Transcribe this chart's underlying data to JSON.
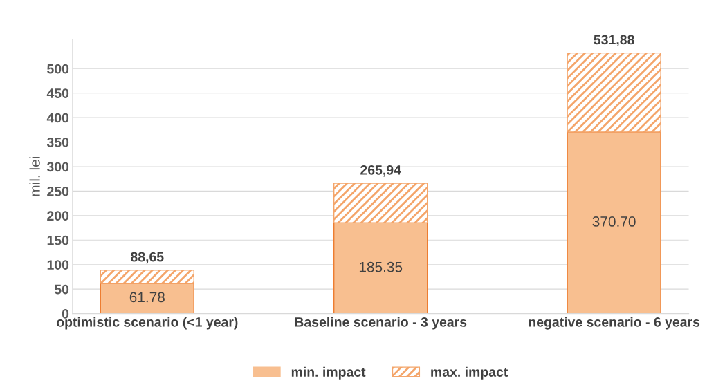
{
  "chart_data": {
    "type": "bar",
    "stacked": true,
    "ylabel": "mil. lei",
    "categories": [
      "optimistic scenario (<1 year)",
      "Baseline scenario - 3 years",
      "negative scenario - 6 years"
    ],
    "series": [
      {
        "name": "min. impact",
        "color": "#f8bf90",
        "values": [
          61.78,
          185.35,
          370.7
        ],
        "value_labels": [
          "61.78",
          "185.35",
          "370.70"
        ]
      },
      {
        "name": "max. impact",
        "color": "#f4a56a",
        "values": [
          26.87,
          80.59,
          161.18
        ]
      }
    ],
    "totals": [
      "88,65",
      "265,94",
      "531,88"
    ],
    "ylim": [
      0,
      560
    ],
    "yticks": [
      0,
      50,
      100,
      150,
      200,
      250,
      300,
      350,
      400,
      450,
      500
    ],
    "grid": "y",
    "legend": "bottom"
  }
}
